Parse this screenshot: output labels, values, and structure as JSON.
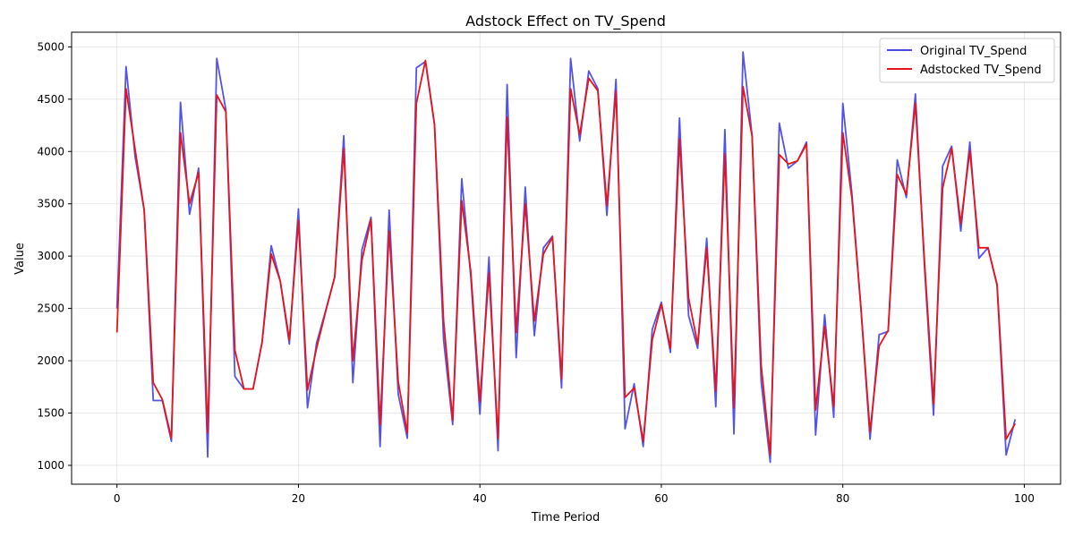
{
  "chart_data": {
    "type": "line",
    "title": "Adstock Effect on TV_Spend",
    "xlabel": "Time Period",
    "ylabel": "Value",
    "xlim": [
      -5,
      104
    ],
    "ylim": [
      820,
      5140
    ],
    "xticks": [
      0,
      20,
      40,
      60,
      80,
      100
    ],
    "yticks": [
      1000,
      1500,
      2000,
      2500,
      3000,
      3500,
      4000,
      4500,
      5000
    ],
    "grid": true,
    "legend_position": "top-right",
    "x": [
      0,
      1,
      2,
      3,
      4,
      5,
      6,
      7,
      8,
      9,
      10,
      11,
      12,
      13,
      14,
      15,
      16,
      17,
      18,
      19,
      20,
      21,
      22,
      23,
      24,
      25,
      26,
      27,
      28,
      29,
      30,
      31,
      32,
      33,
      34,
      35,
      36,
      37,
      38,
      39,
      40,
      41,
      42,
      43,
      44,
      45,
      46,
      47,
      48,
      49,
      50,
      51,
      52,
      53,
      54,
      55,
      56,
      57,
      58,
      59,
      60,
      61,
      62,
      63,
      64,
      65,
      66,
      67,
      68,
      69,
      70,
      71,
      72,
      73,
      74,
      75,
      76,
      77,
      78,
      79,
      80,
      81,
      82,
      83,
      84,
      85,
      86,
      87,
      88,
      89,
      90,
      91,
      92,
      93,
      94,
      95,
      96,
      97,
      98,
      99
    ],
    "series": [
      {
        "name": "Original TV_Spend",
        "color": "#4a4ae8",
        "values": [
          2500,
          4810,
          3950,
          3440,
          1620,
          1620,
          1230,
          4470,
          3400,
          3840,
          1080,
          4890,
          4400,
          1850,
          1730,
          1730,
          2180,
          3100,
          2760,
          2160,
          3450,
          1550,
          2170,
          2480,
          2800,
          4150,
          1790,
          3060,
          3370,
          1180,
          3440,
          1680,
          1260,
          4800,
          4860,
          4250,
          2200,
          1390,
          3740,
          2800,
          1490,
          2990,
          1140,
          4640,
          2030,
          3660,
          2240,
          3080,
          3190,
          1740,
          4890,
          4100,
          4770,
          4600,
          3390,
          4690,
          1350,
          1780,
          1180,
          2300,
          2560,
          2080,
          4320,
          2430,
          2120,
          3170,
          1560,
          4210,
          1300,
          4950,
          4150,
          1800,
          1030,
          4270,
          3840,
          3910,
          4090,
          1290,
          2440,
          1460,
          4460,
          3600,
          2500,
          1250,
          2250,
          2280,
          3920,
          3560,
          4550,
          2900,
          1480,
          3860,
          4050,
          3240,
          4090,
          2980,
          3080,
          2720,
          1100,
          1440
        ]
      },
      {
        "name": "Adstocked TV_Spend",
        "color": "#e8141c",
        "values": [
          2270,
          4600,
          4020,
          3440,
          1790,
          1630,
          1260,
          4180,
          3500,
          3800,
          1310,
          4540,
          4380,
          2100,
          1730,
          1730,
          2180,
          3020,
          2760,
          2200,
          3340,
          1720,
          2120,
          2470,
          2800,
          4030,
          2000,
          2960,
          3350,
          1390,
          3240,
          1800,
          1310,
          4460,
          4870,
          4260,
          2380,
          1430,
          3530,
          2850,
          1610,
          2840,
          1260,
          4330,
          2270,
          3500,
          2380,
          3020,
          3180,
          1830,
          4600,
          4160,
          4700,
          4580,
          3480,
          4580,
          1650,
          1740,
          1230,
          2200,
          2540,
          2120,
          4120,
          2600,
          2160,
          3080,
          1710,
          3980,
          1550,
          4620,
          4150,
          1960,
          1100,
          3970,
          3880,
          3910,
          4070,
          1530,
          2330,
          1560,
          4180,
          3560,
          2500,
          1320,
          2140,
          2290,
          3780,
          3590,
          4460,
          2950,
          1590,
          3650,
          4030,
          3310,
          4010,
          3080,
          3080,
          2730,
          1250,
          1400
        ]
      }
    ]
  }
}
